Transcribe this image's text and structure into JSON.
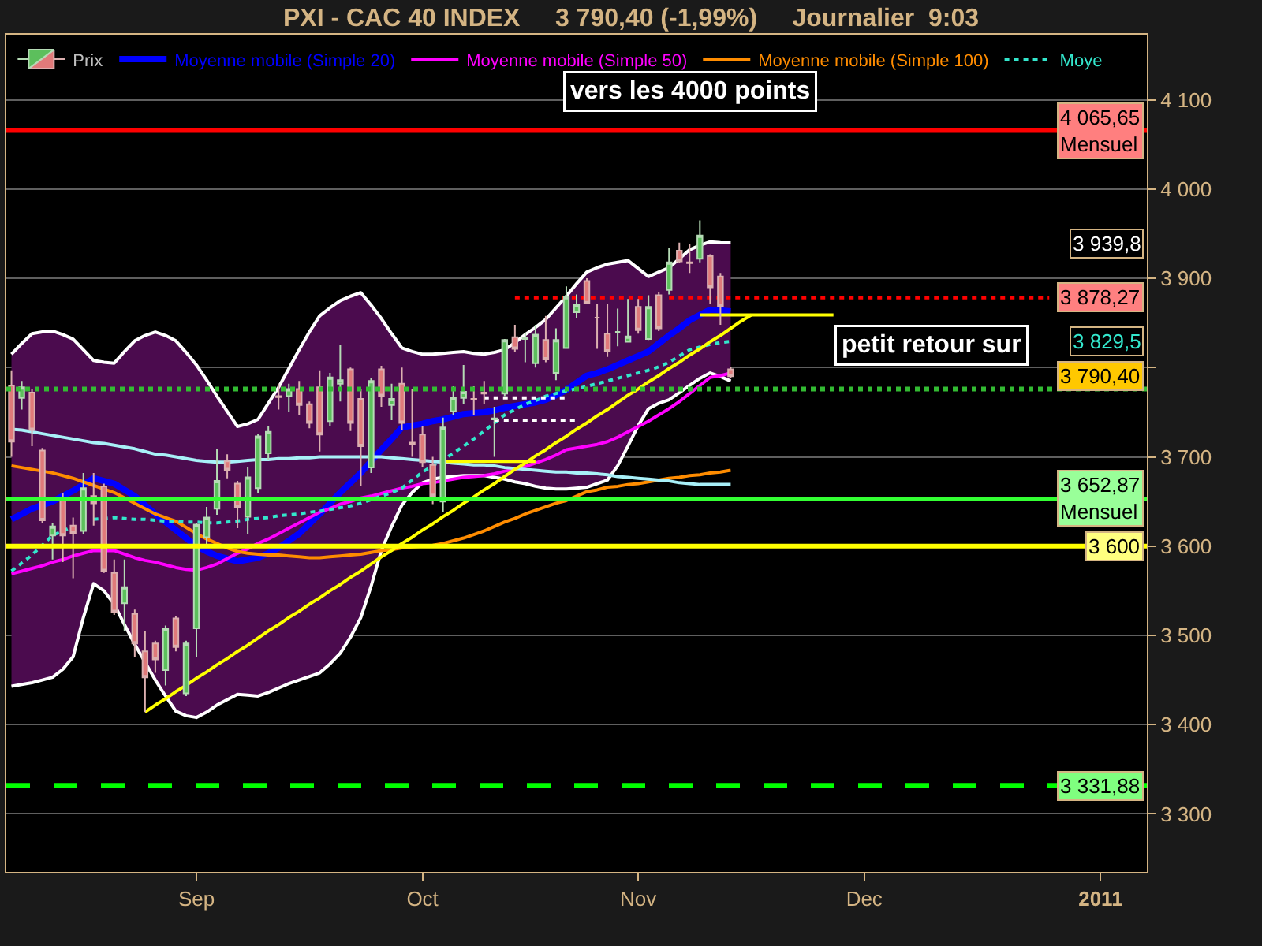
{
  "chart_data": {
    "type": "candlestick",
    "title": "PXI - CAC 40 INDEX     3 790,40 (-1,99%)     Journalier  9:03",
    "categories": [
      null,
      null,
      null,
      null,
      null,
      null,
      null,
      null,
      null,
      null,
      null,
      null,
      null,
      null,
      null,
      null,
      null,
      null,
      "Sep",
      null,
      null,
      null,
      null,
      null,
      null,
      null,
      null,
      null,
      null,
      null,
      null,
      null,
      null,
      null,
      null,
      null,
      null,
      null,
      null,
      null,
      "Oct",
      null,
      null,
      null,
      null,
      null,
      null,
      null,
      null,
      null,
      null,
      null,
      null,
      null,
      null,
      null,
      null,
      null,
      null,
      null,
      null,
      "Nov",
      null,
      null,
      null,
      null,
      null,
      null,
      null,
      null,
      null,
      null,
      null,
      null,
      null,
      null,
      null,
      null,
      null,
      null,
      null,
      null,
      null,
      "Dec",
      null,
      null,
      null,
      null,
      null,
      null,
      null,
      null,
      null,
      null,
      null,
      null,
      null,
      null,
      null,
      null,
      null,
      null,
      null,
      null,
      null,
      null,
      "2011",
      null,
      null,
      null,
      null
    ],
    "series": [
      {
        "name": "Prix",
        "ohlc": [
          [
            3780,
            3797,
            3700,
            3717
          ],
          [
            3766,
            3785,
            3753,
            3778
          ],
          [
            3772,
            3776,
            3712,
            3730
          ],
          [
            3707,
            3710,
            3626,
            3629
          ],
          [
            3612,
            3626,
            3585,
            3622
          ],
          [
            3653,
            3659,
            3582,
            3612
          ],
          [
            3623,
            3632,
            3564,
            3614
          ],
          [
            3617,
            3682,
            3614,
            3665
          ],
          [
            3656,
            3682,
            3623,
            3648
          ],
          [
            3667,
            3670,
            3570,
            3572
          ],
          [
            3570,
            3585,
            3523,
            3526
          ],
          [
            3536,
            3585,
            3505,
            3554
          ],
          [
            3524,
            3529,
            3476,
            3491
          ],
          [
            3482,
            3505,
            3414,
            3453
          ],
          [
            3491,
            3494,
            3458,
            3473
          ],
          [
            3461,
            3511,
            3444,
            3508
          ],
          [
            3519,
            3522,
            3482,
            3487
          ],
          [
            3435,
            3494,
            3432,
            3491
          ],
          [
            3508,
            3626,
            3476,
            3624
          ],
          [
            3610,
            3644,
            3600,
            3632
          ],
          [
            3642,
            3709,
            3635,
            3673
          ],
          [
            3695,
            3703,
            3676,
            3685
          ],
          [
            3670,
            3673,
            3620,
            3644
          ],
          [
            3633,
            3688,
            3614,
            3677
          ],
          [
            3665,
            3726,
            3659,
            3723
          ],
          [
            3704,
            3734,
            3697,
            3728
          ],
          [
            3768,
            3782,
            3753,
            3767
          ],
          [
            3768,
            3782,
            3750,
            3776
          ],
          [
            3776,
            3785,
            3747,
            3758
          ],
          [
            3759,
            3762,
            3732,
            3738
          ],
          [
            3778,
            3797,
            3706,
            3725
          ],
          [
            3740,
            3794,
            3735,
            3789
          ],
          [
            3782,
            3826,
            3762,
            3786
          ],
          [
            3798,
            3800,
            3729,
            3738
          ],
          [
            3765,
            3776,
            3667,
            3712
          ],
          [
            3688,
            3788,
            3682,
            3785
          ],
          [
            3798,
            3802,
            3756,
            3768
          ],
          [
            3758,
            3782,
            3741,
            3765
          ],
          [
            3782,
            3800,
            3730,
            3738
          ],
          [
            3716,
            3776,
            3700,
            3714
          ],
          [
            3725,
            3735,
            3688,
            3694
          ],
          [
            3691,
            3700,
            3647,
            3656
          ],
          [
            3650,
            3744,
            3638,
            3733
          ],
          [
            3751,
            3779,
            3747,
            3766
          ],
          [
            3766,
            3803,
            3759,
            3773
          ],
          [
            3765,
            3779,
            3747,
            3764
          ],
          [
            3772,
            3785,
            3759,
            3771
          ],
          [
            3742,
            3756,
            3700,
            3743
          ],
          [
            3771,
            3832,
            3768,
            3831
          ],
          [
            3834,
            3848,
            3818,
            3821
          ],
          [
            3832,
            3839,
            3806,
            3833
          ],
          [
            3805,
            3848,
            3800,
            3837
          ],
          [
            3831,
            3858,
            3806,
            3809
          ],
          [
            3794,
            3844,
            3786,
            3831
          ],
          [
            3822,
            3891,
            3821,
            3879
          ],
          [
            3862,
            3882,
            3856,
            3871
          ],
          [
            3897,
            3900,
            3871,
            3872
          ],
          [
            3856,
            3871,
            3821,
            3856
          ],
          [
            3838,
            3871,
            3812,
            3818
          ],
          [
            3840,
            3866,
            3824,
            3840
          ],
          [
            3829,
            3877,
            3828,
            3835
          ],
          [
            3868,
            3877,
            3838,
            3842
          ],
          [
            3832,
            3881,
            3831,
            3868
          ],
          [
            3881,
            3885,
            3841,
            3844
          ],
          [
            3887,
            3934,
            3882,
            3918
          ],
          [
            3931,
            3940,
            3917,
            3919
          ],
          [
            3918,
            3938,
            3906,
            3917
          ],
          [
            3922,
            3965,
            3918,
            3948
          ],
          [
            3925,
            3927,
            3871,
            3890
          ],
          [
            3902,
            3906,
            3848,
            3869
          ],
          [
            3798,
            3801,
            3788,
            3790.4
          ],
          null,
          null,
          null,
          null,
          null,
          null,
          null,
          null,
          null,
          null,
          null,
          null,
          null,
          null,
          null,
          null,
          null,
          null,
          null,
          null,
          null,
          null,
          null,
          null,
          null,
          null,
          null,
          null,
          null,
          null,
          null,
          null,
          null,
          null,
          null,
          null,
          null,
          null,
          null,
          null
        ]
      },
      {
        "type": "line",
        "name": "Moyenne mobile (Simple 20)",
        "color": "#0000ff",
        "values": [
          3630,
          3636,
          3642,
          3646,
          3650,
          3656,
          3662,
          3669,
          3676,
          3673,
          3670,
          3663,
          3656,
          3646,
          3636,
          3627,
          3618,
          3609,
          3600,
          3594,
          3589,
          3586,
          3583,
          3585,
          3587,
          3592,
          3598,
          3606,
          3614,
          3625,
          3636,
          3648,
          3660,
          3671,
          3682,
          3695,
          3708,
          3720,
          3733,
          3735,
          3737,
          3740,
          3742,
          3745,
          3748,
          3749,
          3750,
          3752,
          3755,
          3757,
          3759,
          3761,
          3764,
          3769,
          3775,
          3783,
          3791,
          3794,
          3798,
          3803,
          3808,
          3813,
          3818,
          3827,
          3836,
          3844,
          3853,
          3859,
          3865,
          3864,
          3863,
          null,
          null,
          null,
          null,
          null,
          null,
          null,
          null,
          null,
          null,
          null,
          null,
          null,
          null,
          null,
          null,
          null,
          null,
          null,
          null,
          null,
          null,
          null,
          null,
          null,
          null,
          null,
          null,
          null,
          null,
          null,
          null,
          null,
          null,
          null,
          null,
          null,
          null,
          null,
          null
        ],
        "upper": [
          3815,
          3827,
          3838,
          3840,
          3841,
          3837,
          3832,
          3820,
          3808,
          3806,
          3805,
          3818,
          3830,
          3836,
          3840,
          3836,
          3830,
          3817,
          3803,
          3786,
          3768,
          3751,
          3734,
          3737,
          3742,
          3760,
          3778,
          3799,
          3820,
          3840,
          3858,
          3867,
          3875,
          3880,
          3884,
          3870,
          3855,
          3838,
          3822,
          3818,
          3815,
          3815,
          3816,
          3817,
          3818,
          3816,
          3815,
          3817,
          3820,
          3828,
          3837,
          3845,
          3854,
          3867,
          3880,
          3894,
          3907,
          3912,
          3916,
          3918,
          3920,
          3911,
          3902,
          3907,
          3912,
          3922,
          3932,
          3937,
          3941,
          3940,
          3939.8,
          null,
          null,
          null,
          null,
          null,
          null,
          null,
          null,
          null,
          null,
          null,
          null,
          null,
          null,
          null,
          null,
          null,
          null,
          null,
          null,
          null,
          null,
          null,
          null,
          null,
          null,
          null,
          null,
          null,
          null,
          null,
          null,
          null,
          null,
          null,
          null,
          null,
          null,
          null,
          null
        ],
        "lower": [
          3443,
          3445,
          3447,
          3450,
          3453,
          3462,
          3476,
          3520,
          3558,
          3550,
          3535,
          3512,
          3490,
          3470,
          3450,
          3432,
          3415,
          3410,
          3408,
          3414,
          3422,
          3428,
          3434,
          3433,
          3432,
          3436,
          3441,
          3446,
          3450,
          3454,
          3458,
          3468,
          3480,
          3498,
          3520,
          3555,
          3595,
          3622,
          3646,
          3660,
          3671,
          3675,
          3677,
          3678,
          3679,
          3679,
          3679,
          3677,
          3675,
          3672,
          3670,
          3667,
          3665,
          3664,
          3664,
          3665,
          3666,
          3670,
          3674,
          3690,
          3712,
          3735,
          3754,
          3760,
          3764,
          3772,
          3780,
          3788,
          3794,
          3790,
          3785,
          null,
          null,
          null,
          null,
          null,
          null,
          null,
          null,
          null,
          null,
          null,
          null,
          null,
          null,
          null,
          null,
          null,
          null,
          null,
          null,
          null,
          null,
          null,
          null,
          null,
          null,
          null,
          null,
          null,
          null,
          null,
          null,
          null,
          null,
          null,
          null,
          null,
          null,
          null,
          null
        ]
      },
      {
        "type": "line",
        "color": "#ffffff",
        "values": [
          3815,
          3827,
          3838,
          3840,
          3841,
          3837,
          3832,
          3820,
          3808,
          3806,
          3805,
          3818,
          3830,
          3836,
          3840,
          3836,
          3830,
          3817,
          3803,
          3786,
          3768,
          3751,
          3734,
          3737,
          3742,
          3760,
          3778,
          3799,
          3820,
          3840,
          3858,
          3867,
          3875,
          3880,
          3884,
          3870,
          3855,
          3838,
          3822,
          3818,
          3815,
          3815,
          3816,
          3817,
          3818,
          3816,
          3815,
          3817,
          3820,
          3828,
          3837,
          3845,
          3854,
          3867,
          3880,
          3894,
          3907,
          3912,
          3916,
          3918,
          3920,
          3911,
          3902,
          3907,
          3912,
          3922,
          3932,
          3937,
          3941,
          3940,
          3939.8,
          null,
          null,
          null,
          null,
          null,
          null,
          null,
          null,
          null,
          null,
          null,
          null,
          null,
          null,
          null,
          null,
          null,
          null,
          null,
          null,
          null,
          null,
          null,
          null,
          null,
          null,
          null,
          null,
          null,
          null,
          null,
          null,
          null,
          null,
          null,
          null,
          null,
          null,
          null,
          null
        ]
      },
      {
        "type": "line",
        "color": "#ffffff",
        "values": [
          3443,
          3445,
          3447,
          3450,
          3453,
          3462,
          3476,
          3520,
          3558,
          3550,
          3535,
          3512,
          3490,
          3470,
          3450,
          3432,
          3415,
          3410,
          3408,
          3414,
          3422,
          3428,
          3434,
          3433,
          3432,
          3436,
          3441,
          3446,
          3450,
          3454,
          3458,
          3468,
          3480,
          3498,
          3520,
          3555,
          3595,
          3622,
          3646,
          3660,
          3671,
          3675,
          3677,
          3678,
          3679,
          3679,
          3679,
          3677,
          3675,
          3672,
          3670,
          3667,
          3665,
          3664,
          3664,
          3665,
          3666,
          3670,
          3674,
          3690,
          3712,
          3735,
          3754,
          3760,
          3764,
          3772,
          3780,
          3788,
          3794,
          3790,
          3785,
          null,
          null,
          null,
          null,
          null,
          null,
          null,
          null,
          null,
          null,
          null,
          null,
          null,
          null,
          null,
          null,
          null,
          null,
          null,
          null,
          null,
          null,
          null,
          null,
          null,
          null,
          null,
          null,
          null,
          null,
          null,
          null,
          null,
          null,
          null,
          null,
          null,
          null,
          null,
          null
        ]
      },
      {
        "type": "line",
        "name": "Moyenne mobile (Simple 50)",
        "color": "#ff00ff",
        "values": [
          3569,
          3572,
          3575,
          3578,
          3582,
          3585,
          3589,
          3592,
          3595,
          3595,
          3595,
          3591,
          3587,
          3584,
          3582,
          3579,
          3576,
          3574,
          3573,
          3576,
          3580,
          3586,
          3592,
          3597,
          3603,
          3608,
          3614,
          3620,
          3626,
          3632,
          3638,
          3642,
          3647,
          3650,
          3654,
          3656,
          3659,
          3662,
          3665,
          3667,
          3670,
          3671,
          3673,
          3675,
          3677,
          3678,
          3679,
          3681,
          3684,
          3686,
          3689,
          3693,
          3697,
          3702,
          3708,
          3710,
          3712,
          3714,
          3717,
          3722,
          3728,
          3734,
          3740,
          3747,
          3754,
          3762,
          3771,
          3780,
          3789,
          3791,
          3794,
          null,
          null,
          null,
          null,
          null,
          null,
          null,
          null,
          null,
          null,
          null,
          null,
          null,
          null,
          null,
          null,
          null,
          null,
          null,
          null,
          null,
          null,
          null,
          null,
          null,
          null,
          null,
          null,
          null,
          null,
          null,
          null,
          null,
          null,
          null,
          null,
          null,
          null,
          null,
          null
        ]
      },
      {
        "type": "line",
        "name": "Moyenne mobile (Simple 100)",
        "color": "#ff8c00",
        "values": [
          3690,
          3688,
          3686,
          3684,
          3682,
          3679,
          3676,
          3672,
          3668,
          3664,
          3660,
          3654,
          3648,
          3642,
          3636,
          3632,
          3628,
          3621,
          3614,
          3608,
          3603,
          3598,
          3594,
          3592,
          3591,
          3590,
          3590,
          3589,
          3588,
          3587,
          3587,
          3588,
          3589,
          3590,
          3591,
          3593,
          3595,
          3596,
          3598,
          3599,
          3600,
          3601,
          3603,
          3606,
          3609,
          3613,
          3617,
          3622,
          3627,
          3631,
          3636,
          3640,
          3644,
          3648,
          3651,
          3656,
          3661,
          3663,
          3666,
          3667,
          3669,
          3670,
          3672,
          3674,
          3676,
          3677,
          3679,
          3680,
          3682,
          3683,
          3685,
          null,
          null,
          null,
          null,
          null,
          null,
          null,
          null,
          null,
          null,
          null,
          null,
          null,
          null,
          null,
          null,
          null,
          null,
          null,
          null,
          null,
          null,
          null,
          null,
          null,
          null,
          null,
          null,
          null,
          null,
          null,
          null,
          null,
          null,
          null,
          null,
          null,
          null,
          null,
          null
        ]
      },
      {
        "type": "line",
        "name": "Moye",
        "color": "#33e6cc",
        "line_style": "dotted",
        "values": [
          3572,
          3581,
          3590,
          3601,
          3612,
          3617,
          3622,
          null,
          3630,
          3631,
          3632,
          3631,
          3630,
          3630,
          3629,
          3628,
          3628,
          3627,
          3627,
          3626,
          3626,
          3627,
          3628,
          3630,
          3631,
          3632,
          3634,
          3635,
          3636,
          3638,
          3639,
          3641,
          3643,
          3645,
          3648,
          3652,
          3656,
          3660,
          3665,
          3674,
          3683,
          3690,
          3697,
          3704,
          3712,
          3720,
          3729,
          3738,
          3747,
          3753,
          3759,
          3763,
          3768,
          3771,
          3774,
          3776,
          3779,
          3782,
          3785,
          3788,
          3791,
          3794,
          3797,
          3801,
          3806,
          3813,
          3820,
          3823,
          3826,
          3828,
          3829.5,
          null,
          null,
          null,
          null,
          null,
          null,
          null,
          null,
          null,
          null,
          null,
          null,
          null,
          null,
          null,
          null,
          null,
          null,
          null,
          null,
          null,
          null,
          null,
          null,
          null,
          null,
          null,
          null,
          null,
          null,
          null,
          null,
          null,
          null,
          null,
          null,
          null,
          null,
          null,
          null
        ]
      },
      {
        "type": "line",
        "color": "#a8f0f8",
        "values": [
          3731,
          3730,
          3728,
          3726,
          3724,
          3722,
          3720,
          3718,
          3716,
          3715,
          3713,
          3711,
          3709,
          3706,
          3703,
          3702,
          3700,
          3698,
          3696,
          3695,
          3694,
          3694,
          3695,
          3696,
          3697,
          3697,
          3698,
          3698,
          3699,
          3699,
          3700,
          3700,
          3700,
          3700,
          3700,
          3700,
          3700,
          3699,
          3698,
          3697,
          3696,
          3695,
          3694,
          3693,
          3692,
          3691,
          3691,
          3690,
          3688,
          3687,
          3686,
          3685,
          3684,
          3683,
          3683,
          3682,
          3682,
          3681,
          3680,
          3678,
          3677,
          3676,
          3675,
          3674,
          3673,
          3671,
          3670,
          3669,
          3669,
          3669,
          3669,
          null,
          null,
          null,
          null,
          null,
          null,
          null,
          null,
          null,
          null,
          null,
          null,
          null,
          null,
          null,
          null,
          null,
          null,
          null,
          null,
          null,
          null,
          null,
          null,
          null,
          null,
          null,
          null,
          null,
          null,
          null,
          null,
          null,
          null,
          null,
          null,
          null,
          null,
          null,
          null
        ]
      },
      {
        "type": "line",
        "color": "#ffff00",
        "values": [
          null,
          null,
          null,
          null,
          null,
          null,
          null,
          null,
          null,
          null,
          null,
          null,
          null,
          3414,
          3422,
          3429,
          3437,
          3444,
          3452,
          3459,
          3467,
          3474,
          3482,
          3489,
          3497,
          3505,
          3512,
          3520,
          3527,
          3535,
          3542,
          3550,
          3557,
          3565,
          3572,
          3580,
          3588,
          3595,
          3603,
          3610,
          3618,
          3625,
          3633,
          3640,
          3648,
          3655,
          3663,
          3670,
          3678,
          3686,
          3693,
          3701,
          3708,
          3716,
          3723,
          3731,
          3738,
          3746,
          3753,
          3761,
          3769,
          3776,
          3784,
          3791,
          3799,
          3806,
          3814,
          3821,
          3829,
          3836,
          3844,
          3852,
          3859,
          null,
          null,
          null,
          null,
          null,
          null,
          null,
          null,
          null,
          null,
          null,
          null,
          null,
          null,
          null,
          null,
          null,
          null,
          null,
          null,
          null,
          null,
          null,
          null,
          null,
          null,
          null,
          null,
          null,
          null,
          null,
          null,
          null,
          null,
          null,
          null,
          null,
          null
        ]
      },
      {
        "type": "line",
        "color": "#ffff00",
        "values": [
          null,
          null,
          null,
          null,
          null,
          null,
          null,
          null,
          null,
          null,
          null,
          null,
          null,
          null,
          null,
          null,
          null,
          null,
          null,
          null,
          null,
          null,
          null,
          null,
          null,
          null,
          null,
          null,
          null,
          null,
          null,
          null,
          null,
          null,
          null,
          null,
          null,
          null,
          null,
          null,
          null,
          null,
          null,
          null,
          null,
          null,
          null,
          null,
          null,
          null,
          null,
          null,
          null,
          null,
          null,
          null,
          null,
          null,
          null,
          null,
          null,
          null,
          null,
          null,
          null,
          null,
          null,
          3859,
          3859,
          3859,
          3859,
          3859,
          3859,
          3859,
          3859,
          3859,
          3859,
          3859,
          3859,
          3859,
          3859,
          null,
          null,
          null,
          null,
          null,
          null,
          null,
          null,
          null,
          null,
          null,
          null,
          null,
          null,
          null,
          null,
          null,
          null,
          null,
          null,
          null,
          null,
          null,
          null,
          null,
          null,
          null,
          null,
          null,
          null
        ]
      },
      {
        "type": "line",
        "color": "#ffff00",
        "values": [
          null,
          null,
          null,
          null,
          null,
          null,
          null,
          null,
          null,
          null,
          null,
          null,
          null,
          null,
          null,
          null,
          null,
          null,
          null,
          null,
          null,
          null,
          null,
          null,
          null,
          null,
          null,
          null,
          null,
          null,
          null,
          null,
          null,
          null,
          null,
          null,
          null,
          null,
          null,
          null,
          null,
          null,
          3695,
          3695,
          3695,
          3695,
          3695,
          3695,
          3695,
          3695,
          3695,
          3695,
          null,
          null,
          null,
          null,
          null,
          null,
          null,
          null,
          null,
          null,
          null,
          null,
          null,
          null,
          null,
          null,
          null,
          null,
          null,
          null,
          null,
          null,
          null,
          null,
          null,
          null,
          null,
          null,
          null,
          null,
          null,
          null,
          null,
          null,
          null,
          null,
          null,
          null,
          null,
          null,
          null,
          null,
          null,
          null,
          null,
          null,
          null,
          null,
          null,
          null,
          null,
          null,
          null,
          null,
          null,
          null,
          null,
          null,
          null
        ]
      },
      {
        "type": "line",
        "color": "#ffffff",
        "line_style": "dotted",
        "values": [
          null,
          null,
          null,
          null,
          null,
          null,
          null,
          null,
          null,
          null,
          null,
          null,
          null,
          null,
          null,
          null,
          null,
          null,
          null,
          null,
          null,
          null,
          null,
          null,
          null,
          null,
          null,
          null,
          null,
          null,
          null,
          null,
          null,
          null,
          null,
          null,
          null,
          null,
          null,
          null,
          null,
          null,
          null,
          null,
          null,
          null,
          3766,
          3766,
          3766,
          3766,
          3766,
          3766,
          3766,
          3766,
          3766,
          null,
          null,
          null,
          null,
          null,
          null,
          null,
          null,
          null,
          null,
          null,
          null,
          null,
          null,
          null,
          null,
          null,
          null,
          null,
          null,
          null,
          null,
          null,
          null,
          null,
          null,
          null,
          null,
          null,
          null,
          null,
          null,
          null,
          null,
          null,
          null,
          null,
          null,
          null,
          null,
          null,
          null,
          null,
          null,
          null,
          null,
          null,
          null,
          null,
          null,
          null,
          null,
          null,
          null,
          null,
          null
        ]
      },
      {
        "type": "line",
        "color": "#ffffff",
        "line_style": "dotted",
        "values": [
          null,
          null,
          null,
          null,
          null,
          null,
          null,
          null,
          null,
          null,
          null,
          null,
          null,
          null,
          null,
          null,
          null,
          null,
          null,
          null,
          null,
          null,
          null,
          null,
          null,
          null,
          null,
          null,
          null,
          null,
          null,
          null,
          null,
          null,
          null,
          null,
          null,
          null,
          null,
          null,
          null,
          null,
          null,
          null,
          null,
          null,
          null,
          3741,
          3741,
          3741,
          3741,
          3741,
          3741,
          3741,
          3741,
          3741,
          null,
          null,
          null,
          null,
          null,
          null,
          null,
          null,
          null,
          null,
          null,
          null,
          null,
          null,
          null,
          null,
          null,
          null,
          null,
          null,
          null,
          null,
          null,
          null,
          null,
          null,
          null,
          null,
          null,
          null,
          null,
          null,
          null,
          null,
          null,
          null,
          null,
          null,
          null,
          null,
          null,
          null,
          null,
          null,
          null,
          null,
          null,
          null,
          null,
          null,
          null,
          null,
          null,
          null,
          null
        ]
      },
      {
        "type": "line",
        "color": "#ff0000",
        "line_style": "dotted",
        "values": [
          null,
          null,
          null,
          null,
          null,
          null,
          null,
          null,
          null,
          null,
          null,
          null,
          null,
          null,
          null,
          null,
          null,
          null,
          null,
          null,
          null,
          null,
          null,
          null,
          null,
          null,
          null,
          null,
          null,
          null,
          null,
          null,
          null,
          null,
          null,
          null,
          null,
          null,
          null,
          null,
          null,
          null,
          null,
          null,
          null,
          null,
          null,
          null,
          null,
          3878.27,
          3878.27,
          3878.27,
          3878.27,
          3878.27,
          3878.27,
          3878.27,
          3878.27,
          3878.27,
          3878.27,
          3878.27,
          3878.27,
          3878.27,
          3878.27,
          null,
          3878.27,
          3878.27,
          3878.27,
          3878.27,
          3878.27,
          3878.27,
          3878.27,
          3878.27,
          3878.27,
          3878.27,
          3878.27,
          3878.27,
          3878.27,
          3878.27,
          3878.27,
          3878.27,
          3878.27,
          3878.27,
          3878.27,
          3878.27,
          3878.27,
          3878.27,
          3878.27,
          3878.27,
          3878.27,
          3878.27,
          3878.27,
          3878.27,
          3878.27,
          3878.27,
          3878.27,
          3878.27,
          3878.27,
          3878.27,
          3878.27,
          3878.27,
          3878.27,
          3878.27,
          null,
          null,
          null,
          null,
          null,
          null,
          null,
          null,
          null
        ]
      }
    ],
    "ref_lines": [
      {
        "axis": "y",
        "value": 4065.65,
        "label": "4 065,65\nMensuel",
        "color": "#ff0000"
      },
      {
        "axis": "y",
        "value": 3776,
        "color": "#33bb33",
        "line_style": "dotted"
      },
      {
        "axis": "y",
        "value": 3652.87,
        "label": "3 652,87\nMensuel",
        "color": "#33ff33"
      },
      {
        "axis": "y",
        "value": 3600,
        "label": "3 600",
        "color": "#ffff00"
      },
      {
        "axis": "y",
        "value": 3331.88,
        "label": "3 331,88",
        "color": "#00ff00",
        "line_style": "dashed"
      }
    ],
    "annotations": [
      "vers les 4000 points",
      "petit retour sur",
      "3 939,8",
      "3 878,27",
      "3 829,5",
      "3 790,40"
    ],
    "ylim": [
      3235,
      4173
    ],
    "yticks": [
      {
        "value": 3300,
        "label": "3 300"
      },
      {
        "value": 3400,
        "label": "3 400"
      },
      {
        "value": 3500,
        "label": "3 500"
      },
      {
        "value": 3600,
        "label": "3 600"
      },
      {
        "value": 3700,
        "label": "3 700"
      },
      {
        "value": 3800,
        "label": null
      },
      {
        "value": 3900,
        "label": "3 900"
      },
      {
        "value": 4000,
        "label": "4 000"
      },
      {
        "value": 4100,
        "label": "4 100"
      }
    ],
    "grid": "y",
    "legend": "top left"
  }
}
